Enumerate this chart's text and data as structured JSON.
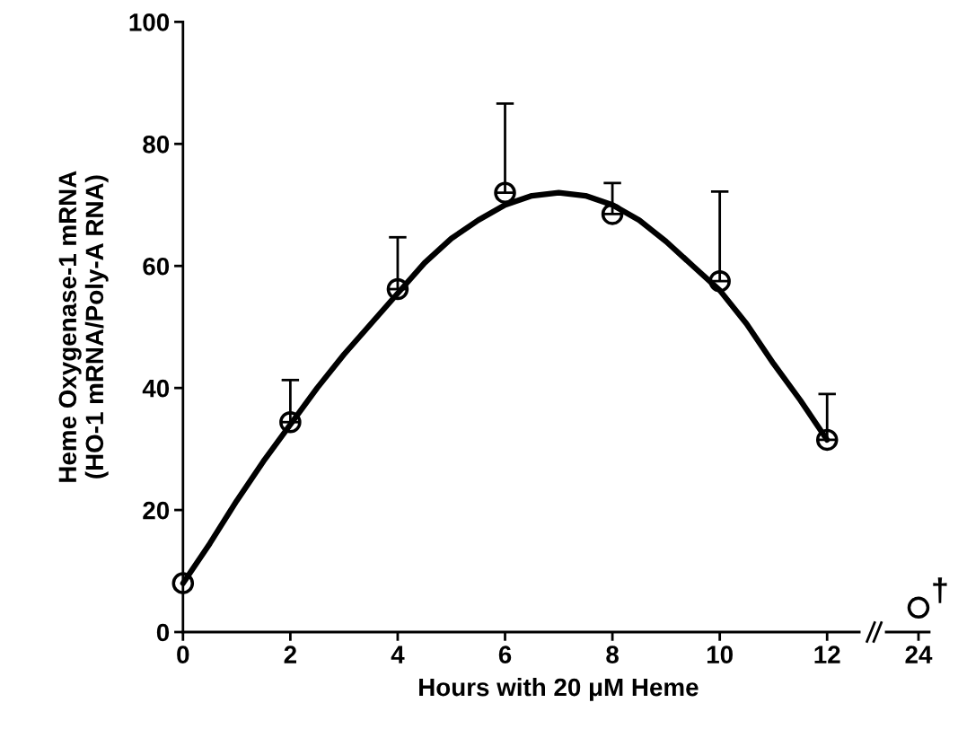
{
  "chart_data": [
    {
      "type": "scatter",
      "xlabel": "Hours with 20 μM Heme",
      "ylabel": "Heme Oxygenase-1 mRNA\n(HO-1 mRNA/Poly-A RNA)",
      "xlim": [
        0,
        12.6
      ],
      "ylim": [
        0,
        100
      ],
      "xticks": [
        0,
        2,
        4,
        6,
        8,
        10,
        12
      ],
      "yticks": [
        0,
        20,
        40,
        60,
        80,
        100
      ],
      "series": [
        {
          "type": "line",
          "color": "#000000",
          "line_style": "solid",
          "x": [
            0,
            0.5,
            1,
            1.5,
            2,
            2.5,
            3,
            3.5,
            4,
            4.5,
            5,
            5.5,
            6,
            6.5,
            7,
            7.5,
            8,
            8.5,
            9,
            9.5,
            10,
            10.5,
            11,
            11.5,
            12
          ],
          "values": [
            8,
            14.5,
            21.5,
            28,
            34,
            40,
            45.5,
            50.5,
            55.5,
            60.5,
            64.5,
            67.5,
            70,
            71.5,
            72,
            71.5,
            70,
            67.5,
            64,
            60,
            56,
            50.5,
            44,
            38,
            31.5
          ]
        },
        {
          "color": "#000000",
          "marker": "circle",
          "x": [
            0,
            2,
            4,
            6,
            8,
            10,
            12
          ],
          "values": [
            8,
            34.4,
            56.2,
            72,
            68.5,
            57.5,
            31.5
          ],
          "errors": [
            null,
            [
              34.4,
              41.3
            ],
            [
              56.2,
              64.7
            ],
            [
              72,
              86.6
            ],
            [
              68.5,
              73.6
            ],
            [
              57.5,
              72.2
            ],
            [
              31.5,
              39
            ]
          ]
        }
      ]
    },
    {
      "type": "scatter",
      "categories": [
        "24"
      ],
      "ylim": [
        0,
        100
      ],
      "yticks": [
        0,
        20,
        40,
        60,
        80,
        100
      ],
      "tick_labels": "x",
      "series": [
        {
          "color": "#000000",
          "marker": "circle",
          "values": [
            4
          ]
        }
      ],
      "annotations": [
        {
          "text": "†",
          "x": "24",
          "y": 4
        }
      ]
    }
  ]
}
